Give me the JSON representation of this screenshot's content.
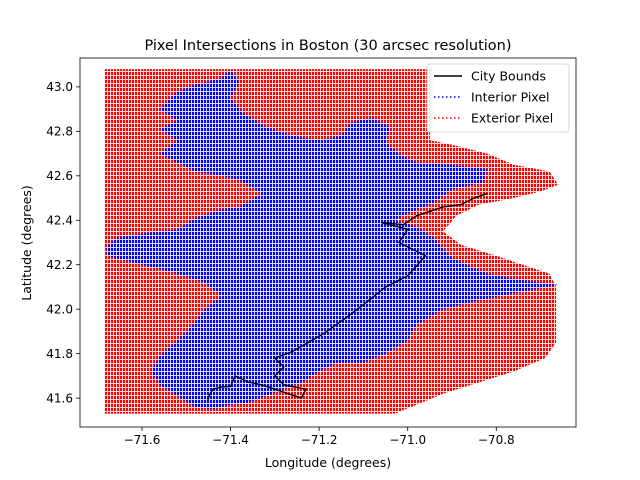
{
  "chart_data": {
    "type": "scatter",
    "title": "Pixel Intersections in Boston (30 arcsec resolution)",
    "xlabel": "Longitude (degrees)",
    "ylabel": "Latitude (degrees)",
    "xlim": [
      -71.74,
      -70.62
    ],
    "ylim": [
      41.47,
      43.13
    ],
    "xticks": [
      -71.6,
      -71.4,
      -71.2,
      -71.0,
      -70.8
    ],
    "xtick_labels": [
      "−71.6",
      "−71.4",
      "−71.2",
      "−71.0",
      "−70.8"
    ],
    "yticks": [
      41.6,
      41.8,
      42.0,
      42.2,
      42.4,
      42.6,
      42.8,
      43.0
    ],
    "ytick_labels": [
      "41.6",
      "41.8",
      "42.0",
      "42.2",
      "42.4",
      "42.6",
      "42.8",
      "43.0"
    ],
    "grid": false,
    "legend_position": "upper right",
    "series": [
      {
        "name": "City Bounds",
        "style": "solid",
        "color": "#000000",
        "points": [
          [
            -71.452,
            41.585
          ],
          [
            -71.448,
            41.612
          ],
          [
            -71.44,
            41.64
          ],
          [
            -71.42,
            41.65
          ],
          [
            -71.4,
            41.652
          ],
          [
            -71.39,
            41.7
          ],
          [
            -71.36,
            41.672
          ],
          [
            -71.33,
            41.66
          ],
          [
            -71.3,
            41.64
          ],
          [
            -71.27,
            41.62
          ],
          [
            -71.24,
            41.6
          ],
          [
            -71.23,
            41.64
          ],
          [
            -71.28,
            41.66
          ],
          [
            -71.3,
            41.7
          ],
          [
            -71.28,
            41.74
          ],
          [
            -71.3,
            41.78
          ],
          [
            -71.26,
            41.81
          ],
          [
            -71.19,
            41.89
          ],
          [
            -71.14,
            41.96
          ],
          [
            -71.1,
            42.02
          ],
          [
            -71.05,
            42.1
          ],
          [
            -71.0,
            42.15
          ],
          [
            -70.96,
            42.24
          ],
          [
            -71.02,
            42.3
          ],
          [
            -71.0,
            42.36
          ],
          [
            -71.06,
            42.39
          ],
          [
            -71.01,
            42.38
          ],
          [
            -70.98,
            42.42
          ],
          [
            -70.92,
            42.46
          ],
          [
            -70.88,
            42.47
          ],
          [
            -70.85,
            42.5
          ],
          [
            -70.82,
            42.52
          ]
        ]
      },
      {
        "name": "Interior Pixel",
        "style": "dotted",
        "color": "#0000ff",
        "regions": [
          [
            [
              -71.68,
              42.28
            ],
            [
              -71.66,
              42.32
            ],
            [
              -71.6,
              42.34
            ],
            [
              -71.52,
              42.36
            ],
            [
              -71.48,
              42.41
            ],
            [
              -71.42,
              42.45
            ],
            [
              -71.38,
              42.46
            ],
            [
              -71.33,
              42.52
            ],
            [
              -71.38,
              42.58
            ],
            [
              -71.42,
              42.6
            ],
            [
              -71.48,
              42.62
            ],
            [
              -71.53,
              42.67
            ],
            [
              -71.56,
              42.7
            ],
            [
              -71.52,
              42.76
            ],
            [
              -71.56,
              42.81
            ],
            [
              -71.52,
              42.85
            ],
            [
              -71.56,
              42.9
            ],
            [
              -71.52,
              42.98
            ],
            [
              -71.48,
              43.01
            ],
            [
              -71.42,
              43.04
            ],
            [
              -71.4,
              43.08
            ],
            [
              -71.38,
              43.02
            ],
            [
              -71.4,
              42.95
            ],
            [
              -71.37,
              42.88
            ],
            [
              -71.32,
              42.82
            ],
            [
              -71.26,
              42.78
            ],
            [
              -71.2,
              42.76
            ],
            [
              -71.15,
              42.78
            ],
            [
              -71.13,
              42.84
            ],
            [
              -71.08,
              42.86
            ],
            [
              -71.04,
              42.82
            ],
            [
              -71.05,
              42.75
            ],
            [
              -71.02,
              42.7
            ],
            [
              -70.98,
              42.66
            ],
            [
              -70.9,
              42.65
            ],
            [
              -70.82,
              42.63
            ],
            [
              -70.83,
              42.57
            ],
            [
              -70.9,
              42.54
            ],
            [
              -70.94,
              42.48
            ],
            [
              -70.99,
              42.44
            ],
            [
              -71.03,
              42.4
            ],
            [
              -70.98,
              42.37
            ],
            [
              -70.94,
              42.32
            ],
            [
              -70.9,
              42.23
            ],
            [
              -70.82,
              42.16
            ],
            [
              -70.74,
              42.13
            ],
            [
              -70.66,
              42.11
            ],
            [
              -70.74,
              42.08
            ],
            [
              -70.84,
              42.04
            ],
            [
              -70.92,
              42.0
            ],
            [
              -70.98,
              41.93
            ],
            [
              -71.0,
              41.86
            ],
            [
              -71.05,
              41.8
            ],
            [
              -71.1,
              41.76
            ],
            [
              -71.16,
              41.76
            ],
            [
              -71.2,
              41.72
            ],
            [
              -71.23,
              41.68
            ],
            [
              -71.28,
              41.64
            ],
            [
              -71.32,
              41.61
            ],
            [
              -71.36,
              41.58
            ],
            [
              -71.4,
              41.57
            ],
            [
              -71.44,
              41.55
            ],
            [
              -71.48,
              41.56
            ],
            [
              -71.52,
              41.61
            ],
            [
              -71.56,
              41.66
            ],
            [
              -71.58,
              41.72
            ],
            [
              -71.56,
              41.79
            ],
            [
              -71.52,
              41.86
            ],
            [
              -71.48,
              41.94
            ],
            [
              -71.46,
              42.0
            ],
            [
              -71.42,
              42.06
            ],
            [
              -71.46,
              42.12
            ],
            [
              -71.52,
              42.16
            ],
            [
              -71.6,
              42.2
            ],
            [
              -71.68,
              42.24
            ]
          ]
        ]
      },
      {
        "name": "Exterior Pixel",
        "style": "dotted",
        "color": "#ff0000",
        "regions": [
          [
            [
              -71.685,
              41.53
            ],
            [
              -71.685,
              43.08
            ],
            [
              -70.95,
              43.08
            ],
            [
              -70.95,
              42.76
            ],
            [
              -70.9,
              42.74
            ],
            [
              -70.82,
              42.7
            ],
            [
              -70.76,
              42.65
            ],
            [
              -70.68,
              42.62
            ],
            [
              -70.66,
              42.56
            ],
            [
              -70.7,
              42.53
            ],
            [
              -70.76,
              42.5
            ],
            [
              -70.84,
              42.47
            ],
            [
              -70.89,
              42.42
            ],
            [
              -70.92,
              42.35
            ],
            [
              -70.88,
              42.29
            ],
            [
              -70.8,
              42.24
            ],
            [
              -70.74,
              42.2
            ],
            [
              -70.68,
              42.16
            ],
            [
              -70.665,
              42.1
            ],
            [
              -70.665,
              41.85
            ],
            [
              -70.69,
              41.78
            ],
            [
              -70.76,
              41.72
            ],
            [
              -70.84,
              41.67
            ],
            [
              -70.92,
              41.62
            ],
            [
              -70.98,
              41.57
            ],
            [
              -71.03,
              41.53
            ]
          ]
        ]
      }
    ]
  }
}
